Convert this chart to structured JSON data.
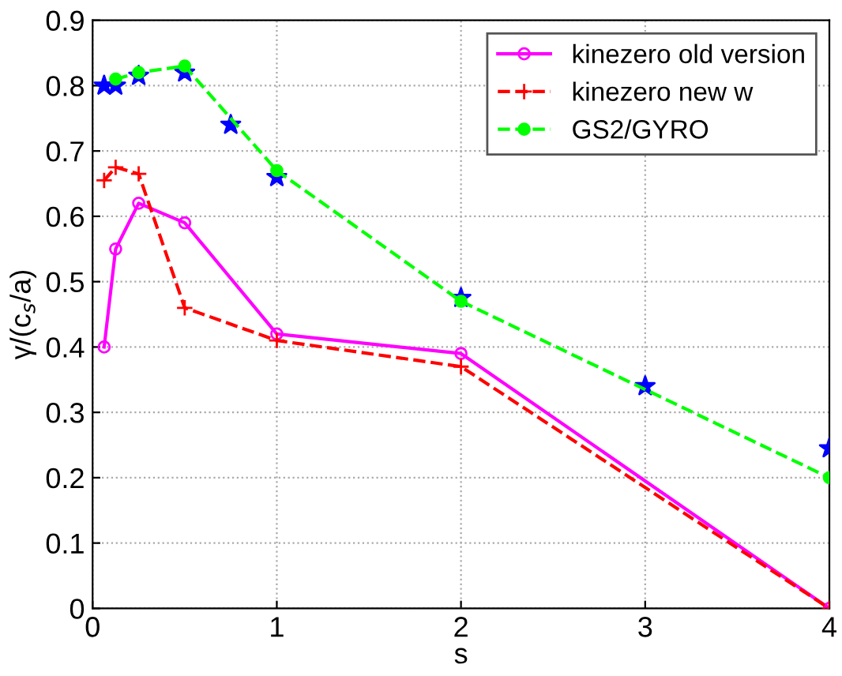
{
  "chart_data": {
    "type": "line",
    "xlabel": "s",
    "ylabel": "γ/(c$_{s}$/a)",
    "xlim": [
      0,
      4
    ],
    "ylim": [
      0,
      0.9
    ],
    "xticks": [
      0,
      1,
      2,
      3,
      4
    ],
    "yticks": [
      0,
      0.1,
      0.2,
      0.3,
      0.4,
      0.5,
      0.6,
      0.7,
      0.8,
      0.9
    ],
    "grid": true,
    "legend": "top right",
    "series": [
      {
        "name": "kinezero old version",
        "color": "#ff00ff",
        "marker": "circle",
        "line_style": "solid",
        "x": [
          0.0625,
          0.125,
          0.25,
          0.5,
          1,
          2,
          4
        ],
        "values": [
          0.4,
          0.55,
          0.62,
          0.59,
          0.42,
          0.39,
          0.0
        ]
      },
      {
        "name": "kinezero new w",
        "color": "#ff0000",
        "marker": "cross",
        "line_style": "dashed",
        "x": [
          0.0625,
          0.125,
          0.25,
          0.5,
          1,
          2,
          4
        ],
        "values": [
          0.655,
          0.675,
          0.665,
          0.46,
          0.41,
          0.37,
          0.0
        ]
      },
      {
        "name": "GS2/GYRO",
        "color": "#00ff00",
        "marker": "circle",
        "line_style": "dashed",
        "x": [
          0.125,
          0.25,
          0.5,
          1,
          2,
          4
        ],
        "values": [
          0.81,
          0.82,
          0.83,
          0.67,
          0.47,
          0.2
        ]
      },
      {
        "type": "scatter",
        "color": "#0000ff",
        "marker": "star",
        "x": [
          0.0625,
          0.125,
          0.25,
          0.5,
          0.75,
          1,
          2,
          3,
          4
        ],
        "values": [
          0.8,
          0.8,
          0.815,
          0.82,
          0.74,
          0.66,
          0.475,
          0.34,
          0.245
        ]
      }
    ]
  }
}
